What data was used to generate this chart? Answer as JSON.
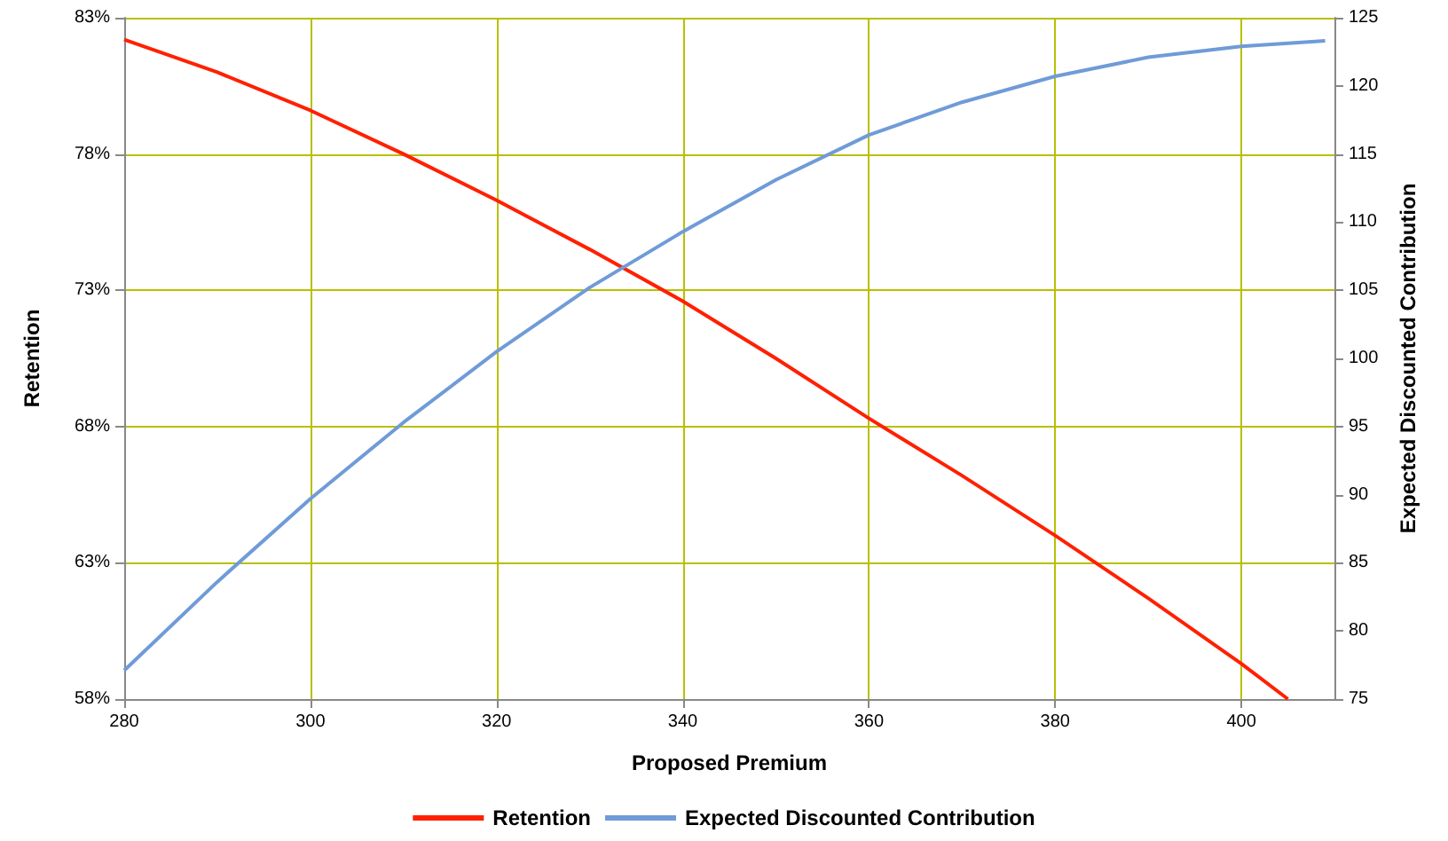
{
  "chart_data": {
    "type": "line",
    "xlabel": "Proposed Premium",
    "ylabel": "Retention",
    "y2label": "Expected Discounted Contribution",
    "xlim": [
      280,
      410
    ],
    "xticks": [
      280,
      300,
      320,
      340,
      360,
      380,
      400
    ],
    "ylim": [
      58,
      83
    ],
    "yticks": [
      {
        "value": 58,
        "label": "58%"
      },
      {
        "value": 63,
        "label": "63%"
      },
      {
        "value": 68,
        "label": "68%"
      },
      {
        "value": 73,
        "label": "73%"
      },
      {
        "value": 78,
        "label": "78%"
      },
      {
        "value": 83,
        "label": "83%"
      }
    ],
    "y2lim": [
      75,
      125
    ],
    "y2ticks": [
      75,
      80,
      85,
      90,
      95,
      100,
      105,
      110,
      115,
      120,
      125
    ],
    "grid": true,
    "legend": "bottom",
    "marker": "none",
    "line_style": "solid",
    "series": [
      {
        "name": "Retention",
        "color": "#ff2000",
        "x": [
          280,
          290,
          300,
          310,
          320,
          330,
          340,
          350,
          360,
          370,
          380,
          390,
          400,
          405
        ],
        "values": [
          82.2,
          81,
          79.6,
          78,
          76.3,
          74.5,
          72.6,
          70.5,
          68.3,
          66.2,
          64,
          61.7,
          59.3,
          58
        ]
      },
      {
        "name": "Expected Discounted Contribution",
        "color": "#6f9bd8",
        "axis": "y2",
        "x": [
          280,
          290,
          300,
          310,
          320,
          330,
          340,
          350,
          360,
          370,
          380,
          390,
          400,
          409
        ],
        "values": [
          77.1,
          83.6,
          89.7,
          95.3,
          100.5,
          105.2,
          109.3,
          113.1,
          116.4,
          118.8,
          120.7,
          122.1,
          122.9,
          123.3
        ]
      }
    ]
  }
}
